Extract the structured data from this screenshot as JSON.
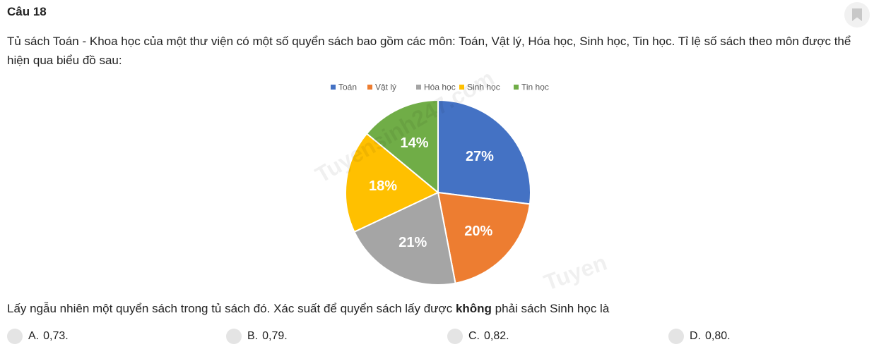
{
  "question": {
    "title": "Câu 18",
    "text": "Tủ sách Toán - Khoa học của một thư viện có một số quyển sách bao gồm các môn: Toán, Vật lý, Hóa học, Sinh học, Tin học. Tỉ lệ số sách theo môn được thể hiện qua biểu đồ sau:",
    "prompt_before": "Lấy ngẫu nhiên một quyển sách trong tủ sách đó. Xác suất để quyển sách lấy được ",
    "prompt_bold": "không",
    "prompt_after": " phải sách Sinh học là"
  },
  "bookmark": {
    "icon": "bookmark-icon"
  },
  "watermarks": [
    "Tuyensinh247.com",
    "Tuyen"
  ],
  "chart_data": {
    "type": "pie",
    "title": "",
    "legend_position": "top",
    "categories": [
      "Toán",
      "Vật lý",
      "Hóa học",
      "Sinh học",
      "Tin học"
    ],
    "values": [
      27,
      20,
      21,
      18,
      14
    ],
    "labels": [
      "27%",
      "20%",
      "21%",
      "18%",
      "14%"
    ],
    "colors": [
      "#4472C4",
      "#ED7D31",
      "#A5A5A5",
      "#FFC000",
      "#70AD47"
    ]
  },
  "options": [
    {
      "letter": "A.",
      "value": "0,73."
    },
    {
      "letter": "B.",
      "value": "0,79."
    },
    {
      "letter": "C.",
      "value": "0,82."
    },
    {
      "letter": "D.",
      "value": "0,80."
    }
  ]
}
